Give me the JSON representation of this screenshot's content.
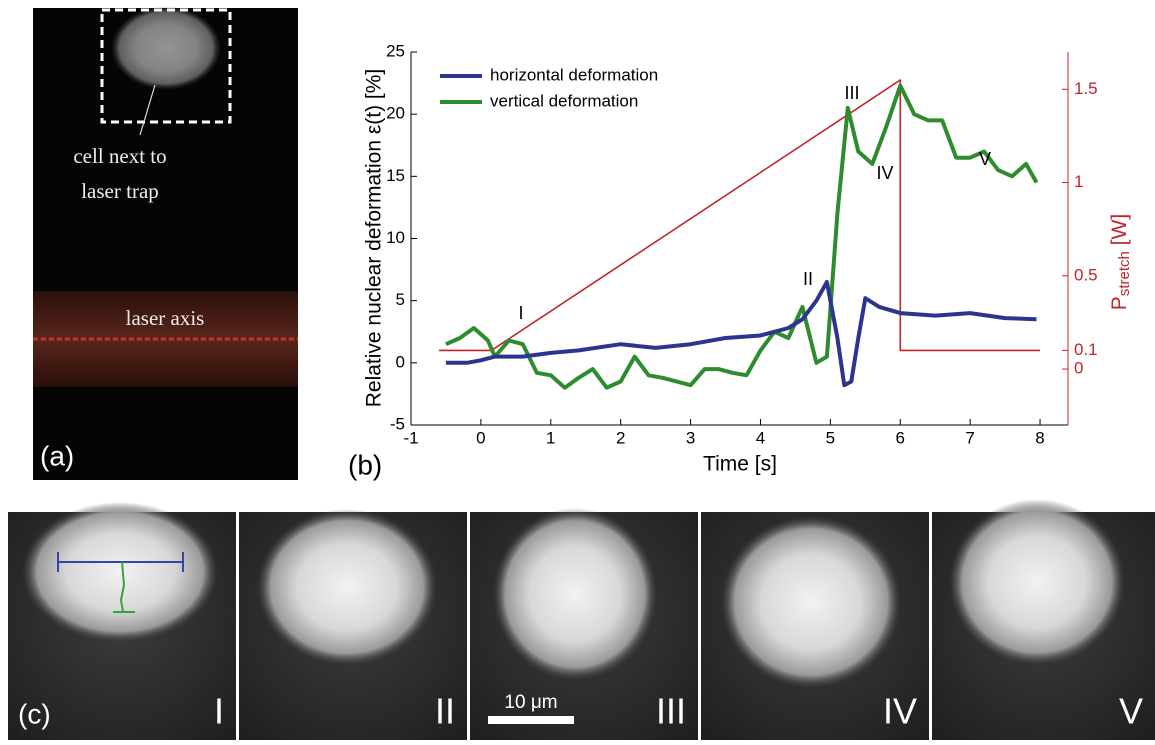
{
  "panel_a": {
    "label": "(a)",
    "cell_text": [
      "cell next to",
      "laser trap"
    ],
    "axis_text": "laser axis"
  },
  "panel_b": {
    "label": "(b)"
  },
  "chart_data": {
    "type": "line",
    "ylabel": "Relative nuclear deformation  ε(t) [%]",
    "xlabel": "Time [s]",
    "y2label": {
      "main": "P",
      "sub": "stretch",
      "unit": " [W]"
    },
    "xlim": [
      -1,
      8.4
    ],
    "xticks": [
      -1,
      0,
      1,
      2,
      3,
      4,
      5,
      6,
      7,
      8
    ],
    "ylim": [
      -5,
      25
    ],
    "yticks": [
      -5,
      0,
      5,
      10,
      15,
      20,
      25
    ],
    "y2lim": [
      -0.3,
      1.7
    ],
    "y2ticks": [
      0,
      0.1,
      0.5,
      1,
      1.5
    ],
    "legend": "upper left",
    "annotations": [
      "I",
      "II",
      "III",
      "IV",
      "V"
    ],
    "series": [
      {
        "name": "horizontal deformation",
        "color": "#2b3590",
        "x": [
          -0.5,
          -0.2,
          0,
          0.2,
          0.6,
          1,
          1.4,
          2,
          2.5,
          3,
          3.5,
          4,
          4.4,
          4.6,
          4.8,
          4.95,
          5.1,
          5.2,
          5.3,
          5.4,
          5.5,
          5.7,
          6,
          6.5,
          7,
          7.5,
          7.95
        ],
        "values": [
          0,
          0,
          0.2,
          0.5,
          0.5,
          0.8,
          1,
          1.5,
          1.2,
          1.5,
          2,
          2.2,
          2.8,
          3.5,
          5,
          6.5,
          2,
          -1.8,
          -1.5,
          2,
          5.2,
          4.5,
          4,
          3.8,
          4,
          3.6,
          3.5
        ]
      },
      {
        "name": "vertical deformation",
        "color": "#2e8b2e",
        "x": [
          -0.5,
          -0.3,
          -0.1,
          0.1,
          0.2,
          0.4,
          0.6,
          0.8,
          1,
          1.2,
          1.4,
          1.6,
          1.8,
          2,
          2.2,
          2.4,
          2.6,
          2.8,
          3,
          3.2,
          3.4,
          3.6,
          3.8,
          4,
          4.2,
          4.4,
          4.6,
          4.8,
          4.95,
          5.1,
          5.25,
          5.4,
          5.6,
          5.8,
          6,
          6.2,
          6.4,
          6.6,
          6.8,
          7,
          7.2,
          7.4,
          7.6,
          7.8,
          7.95
        ],
        "values": [
          1.5,
          2,
          2.8,
          1.8,
          0.5,
          1.8,
          1.5,
          -0.8,
          -1,
          -2,
          -1.2,
          -0.5,
          -2,
          -1.5,
          0.5,
          -1,
          -1.2,
          -1.5,
          -1.8,
          -0.5,
          -0.5,
          -0.8,
          -1,
          1,
          2.5,
          2,
          4.5,
          0,
          0.5,
          12,
          20.5,
          17,
          16,
          19,
          22.3,
          20,
          19.5,
          19.5,
          16.5,
          16.5,
          17,
          15.5,
          15,
          16,
          14.5
        ]
      },
      {
        "color": "#c0252a",
        "axis": "y2",
        "x": [
          -0.6,
          0.15,
          6,
          6,
          8
        ],
        "values": [
          0.1,
          0.1,
          1.55,
          0.1,
          0.1
        ]
      }
    ]
  },
  "panel_c": {
    "label": "(c)",
    "frames": [
      "I",
      "II",
      "III",
      "IV",
      "V"
    ],
    "scale_bar": "10 μm"
  }
}
